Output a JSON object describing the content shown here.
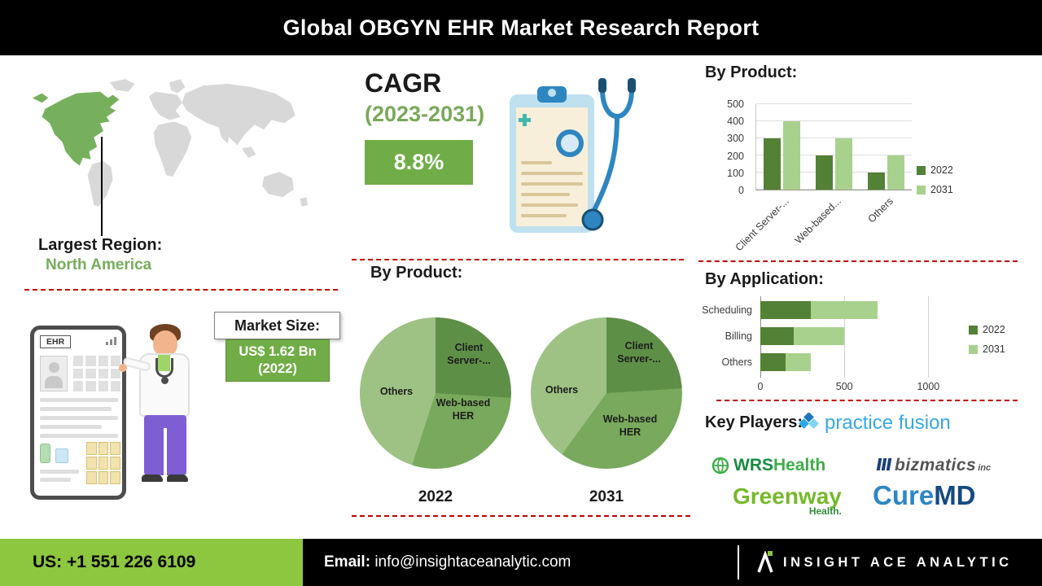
{
  "header": {
    "title": "Global OBGYN EHR Market Research Report"
  },
  "left_panel": {
    "largest_region_label": "Largest Region:",
    "largest_region_value": "North America",
    "market_size_label": "Market Size:",
    "market_size_line1": "US$ 1.62 Bn",
    "market_size_line2": "(2022)",
    "tablet_label": "EHR"
  },
  "cagr": {
    "label": "CAGR",
    "period": "(2023-2031)",
    "value": "8.8%"
  },
  "sections": {
    "pie_section_title": "By Product:",
    "key_players_label": "Key Players:"
  },
  "key_players": {
    "practice_fusion": {
      "part1": "practice",
      "part2": "fusion"
    },
    "wrs": {
      "part1": "WRS",
      "part2": "Health"
    },
    "bizmatics": {
      "name": "bizmatics",
      "suffix": "inc"
    },
    "greenway": {
      "name": "Greenway",
      "suffix": "Health."
    },
    "curemd": {
      "part1": "Cure",
      "part2": "MD"
    }
  },
  "footer": {
    "phone_label": "US:",
    "phone_number": "+1 551 226 6109",
    "email_label": "Email:",
    "email_address": "info@insightaceanalytic.com",
    "brand_name": "INSIGHT ACE ANALYTIC"
  },
  "icons": {
    "world_map": "world-map-north-america-highlighted",
    "clipboard": "clipboard-with-stethoscope-illustration",
    "doctor": "doctor-with-ehr-tablet-illustration",
    "brand_logo": "insight-ace-analytic-mark"
  },
  "colors": {
    "accent_green": "#70ad47",
    "footer_green": "#8dc63f",
    "dashed_line_red": "#c00000",
    "map_highlight_green": "#76b05c",
    "series_2022_green": "#538135",
    "series_2031_green": "#a9d18e"
  },
  "chart_data": [
    {
      "type": "bar",
      "title": "By Product:",
      "categories": [
        "Client Server-...",
        "Web-based...",
        "Others"
      ],
      "series": [
        {
          "name": "2022",
          "color": "#538135",
          "values": [
            300,
            200,
            100
          ]
        },
        {
          "name": "2031",
          "color": "#a9d18e",
          "values": [
            400,
            300,
            200
          ]
        }
      ],
      "ylim": [
        0,
        500
      ],
      "yticks": [
        0,
        100,
        200,
        300,
        400,
        500
      ],
      "grid": true,
      "legend_position": "right"
    },
    {
      "type": "bar-horizontal-stacked",
      "title": "By Application:",
      "categories": [
        "Scheduling",
        "Billing",
        "Others"
      ],
      "series": [
        {
          "name": "2022",
          "color": "#538135",
          "values": [
            300,
            200,
            150
          ]
        },
        {
          "name": "2031",
          "color": "#a9d18e",
          "values": [
            400,
            300,
            150
          ]
        }
      ],
      "xlim": [
        0,
        1100
      ],
      "xticks": [
        0,
        500,
        1000
      ],
      "grid": true,
      "legend_position": "right"
    },
    {
      "type": "pie",
      "title": "2022",
      "labels": [
        "Client Server-...",
        "Web-based HER",
        "Others"
      ],
      "values": [
        26,
        29,
        45
      ],
      "colors": [
        "#5e8f47",
        "#78a95c",
        "#9dc284"
      ]
    },
    {
      "type": "pie",
      "title": "2031",
      "labels": [
        "Client Server-...",
        "Web-based HER",
        "Others"
      ],
      "values": [
        24,
        36,
        40
      ],
      "colors": [
        "#5e8f47",
        "#78a95c",
        "#9dc284"
      ]
    }
  ]
}
